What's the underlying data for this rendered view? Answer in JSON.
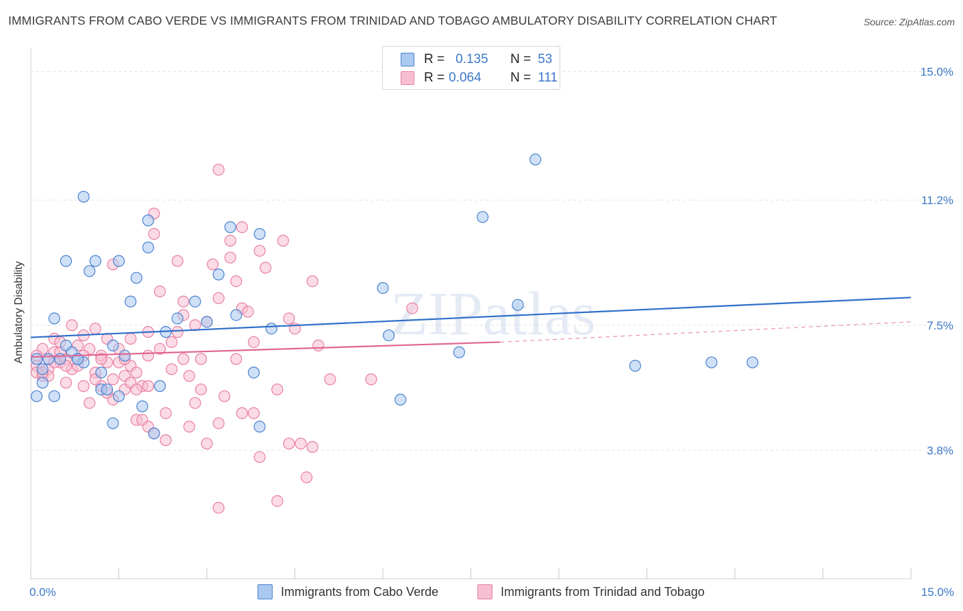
{
  "title": "IMMIGRANTS FROM CABO VERDE VS IMMIGRANTS FROM TRINIDAD AND TOBAGO AMBULATORY DISABILITY CORRELATION CHART",
  "source": "Source: ZipAtlas.com",
  "watermark": "ZIPatlas",
  "legend": {
    "cabo": {
      "r_label": "R =",
      "r_value": "0.135",
      "n_label": "N =",
      "n_value": "53"
    },
    "trinidad": {
      "r_label": "R =",
      "r_value": "0.064",
      "n_label": "N =",
      "n_value": "111"
    }
  },
  "bottom_legend": {
    "cabo": "Immigrants from Cabo Verde",
    "trinidad": "Immigrants from Trinidad and Tobago"
  },
  "colors": {
    "cabo_fill": "#aac8f0",
    "cabo_stroke": "#4a82cf",
    "cabo_line": "#2f6fc9",
    "trin_fill": "#f7bfd1",
    "trin_stroke": "#e87fa2",
    "trin_line": "#e06690",
    "tick_text": "#3b78c8",
    "grid": "#e3e3e3"
  },
  "chart_data": {
    "type": "scatter",
    "title": "IMMIGRANTS FROM CABO VERDE VS IMMIGRANTS FROM TRINIDAD AND TOBAGO AMBULATORY DISABILITY CORRELATION CHART",
    "xlabel": "",
    "ylabel": "Ambulatory Disability",
    "xlim": [
      0,
      15
    ],
    "ylim": [
      0,
      15.7
    ],
    "x_tick_labels": [
      "0.0%",
      "15.0%"
    ],
    "y_ticks": [
      3.8,
      7.5,
      11.2,
      15.0
    ],
    "y_tick_labels": [
      "3.8%",
      "7.5%",
      "11.2%",
      "15.0%"
    ],
    "grid": true,
    "legend_position": "top-center",
    "series": [
      {
        "name": "Immigrants from Cabo Verde",
        "r": 0.135,
        "n": 53,
        "trend": {
          "x": [
            0,
            15
          ],
          "y": [
            7.14,
            8.32
          ]
        },
        "points": [
          [
            0.1,
            6.5
          ],
          [
            0.1,
            5.4
          ],
          [
            0.2,
            5.8
          ],
          [
            0.3,
            6.5
          ],
          [
            0.4,
            7.7
          ],
          [
            0.4,
            5.4
          ],
          [
            0.5,
            6.5
          ],
          [
            0.6,
            6.9
          ],
          [
            0.6,
            9.4
          ],
          [
            0.7,
            6.7
          ],
          [
            0.8,
            6.5
          ],
          [
            0.9,
            6.4
          ],
          [
            0.9,
            11.3
          ],
          [
            1.0,
            9.1
          ],
          [
            1.1,
            9.4
          ],
          [
            1.2,
            5.6
          ],
          [
            1.2,
            6.1
          ],
          [
            1.3,
            5.6
          ],
          [
            1.4,
            6.9
          ],
          [
            1.4,
            4.6
          ],
          [
            1.5,
            9.4
          ],
          [
            1.6,
            6.6
          ],
          [
            1.7,
            8.2
          ],
          [
            1.8,
            8.9
          ],
          [
            1.9,
            5.1
          ],
          [
            2.0,
            9.8
          ],
          [
            2.0,
            10.6
          ],
          [
            2.1,
            4.3
          ],
          [
            2.2,
            5.7
          ],
          [
            2.3,
            7.3
          ],
          [
            2.5,
            7.7
          ],
          [
            2.8,
            8.2
          ],
          [
            3.0,
            7.6
          ],
          [
            3.2,
            9.0
          ],
          [
            3.4,
            10.4
          ],
          [
            3.5,
            7.8
          ],
          [
            3.8,
            6.1
          ],
          [
            3.9,
            10.2
          ],
          [
            3.9,
            4.5
          ],
          [
            4.1,
            7.4
          ],
          [
            6.0,
            8.6
          ],
          [
            6.1,
            7.2
          ],
          [
            6.3,
            5.3
          ],
          [
            7.3,
            6.7
          ],
          [
            7.7,
            10.7
          ],
          [
            8.3,
            8.1
          ],
          [
            8.6,
            12.4
          ],
          [
            10.3,
            6.3
          ],
          [
            11.6,
            6.4
          ],
          [
            12.3,
            6.4
          ],
          [
            0.2,
            6.2
          ],
          [
            0.8,
            6.5
          ],
          [
            1.5,
            5.4
          ]
        ]
      },
      {
        "name": "Immigrants from Trinidad and Tobago",
        "r": 0.064,
        "n": 111,
        "trend": {
          "x": [
            0,
            8
          ],
          "y": [
            6.56,
            7.0
          ]
        },
        "trend_dashed": {
          "x": [
            8,
            15
          ],
          "y": [
            7.0,
            7.6
          ]
        },
        "points": [
          [
            0.1,
            6.3
          ],
          [
            0.1,
            6.1
          ],
          [
            0.2,
            6.8
          ],
          [
            0.2,
            6.0
          ],
          [
            0.3,
            6.5
          ],
          [
            0.3,
            6.2
          ],
          [
            0.4,
            6.7
          ],
          [
            0.4,
            7.1
          ],
          [
            0.5,
            6.4
          ],
          [
            0.5,
            7.0
          ],
          [
            0.6,
            6.5
          ],
          [
            0.6,
            5.8
          ],
          [
            0.7,
            7.5
          ],
          [
            0.7,
            6.2
          ],
          [
            0.8,
            6.9
          ],
          [
            0.8,
            6.3
          ],
          [
            0.9,
            5.7
          ],
          [
            0.9,
            7.2
          ],
          [
            1.0,
            6.8
          ],
          [
            1.0,
            5.2
          ],
          [
            1.1,
            6.1
          ],
          [
            1.1,
            7.4
          ],
          [
            1.2,
            6.6
          ],
          [
            1.2,
            5.7
          ],
          [
            1.3,
            7.1
          ],
          [
            1.3,
            6.4
          ],
          [
            1.4,
            5.9
          ],
          [
            1.4,
            5.3
          ],
          [
            1.5,
            6.8
          ],
          [
            1.5,
            6.4
          ],
          [
            1.6,
            6.0
          ],
          [
            1.6,
            5.6
          ],
          [
            1.7,
            7.1
          ],
          [
            1.7,
            6.3
          ],
          [
            1.8,
            6.1
          ],
          [
            1.8,
            4.7
          ],
          [
            1.9,
            5.7
          ],
          [
            1.9,
            4.7
          ],
          [
            2.0,
            7.3
          ],
          [
            2.0,
            6.6
          ],
          [
            2.0,
            5.7
          ],
          [
            2.0,
            4.5
          ],
          [
            2.1,
            10.2
          ],
          [
            2.1,
            10.8
          ],
          [
            2.1,
            4.3
          ],
          [
            2.2,
            8.5
          ],
          [
            2.2,
            6.8
          ],
          [
            2.3,
            4.9
          ],
          [
            2.3,
            4.1
          ],
          [
            2.4,
            7.0
          ],
          [
            2.5,
            9.4
          ],
          [
            2.6,
            8.2
          ],
          [
            2.6,
            6.5
          ],
          [
            2.7,
            4.5
          ],
          [
            2.8,
            7.5
          ],
          [
            2.8,
            5.2
          ],
          [
            2.9,
            6.5
          ],
          [
            3.0,
            4.0
          ],
          [
            3.1,
            9.3
          ],
          [
            3.2,
            8.3
          ],
          [
            3.2,
            4.6
          ],
          [
            3.3,
            5.4
          ],
          [
            3.4,
            10.0
          ],
          [
            3.4,
            9.5
          ],
          [
            3.5,
            8.8
          ],
          [
            3.5,
            6.5
          ],
          [
            3.6,
            10.4
          ],
          [
            3.6,
            8.0
          ],
          [
            3.6,
            4.9
          ],
          [
            3.7,
            7.9
          ],
          [
            3.8,
            7.0
          ],
          [
            3.9,
            9.7
          ],
          [
            3.9,
            3.6
          ],
          [
            4.0,
            9.2
          ],
          [
            4.2,
            5.6
          ],
          [
            4.3,
            10.0
          ],
          [
            4.4,
            7.7
          ],
          [
            4.5,
            7.4
          ],
          [
            4.6,
            4.0
          ],
          [
            4.7,
            3.0
          ],
          [
            4.8,
            8.8
          ],
          [
            4.9,
            6.9
          ],
          [
            5.1,
            5.9
          ],
          [
            5.8,
            5.9
          ],
          [
            6.5,
            8.0
          ],
          [
            0.3,
            6.0
          ],
          [
            1.4,
            9.3
          ],
          [
            1.2,
            6.5
          ],
          [
            2.5,
            7.3
          ],
          [
            0.1,
            6.6
          ],
          [
            3.2,
            12.1
          ],
          [
            3.2,
            2.1
          ],
          [
            4.2,
            2.3
          ],
          [
            4.4,
            4.0
          ],
          [
            4.8,
            3.9
          ],
          [
            1.7,
            5.8
          ],
          [
            0.5,
            6.7
          ],
          [
            0.9,
            6.6
          ],
          [
            1.1,
            5.9
          ],
          [
            2.4,
            6.2
          ],
          [
            3.0,
            7.6
          ],
          [
            1.6,
            6.5
          ],
          [
            2.6,
            7.8
          ],
          [
            0.6,
            6.3
          ],
          [
            1.8,
            5.6
          ],
          [
            2.9,
            5.6
          ],
          [
            3.8,
            4.9
          ],
          [
            0.2,
            6.1
          ],
          [
            1.3,
            5.5
          ],
          [
            2.7,
            6.0
          ],
          [
            0.4,
            6.4
          ]
        ]
      }
    ]
  }
}
